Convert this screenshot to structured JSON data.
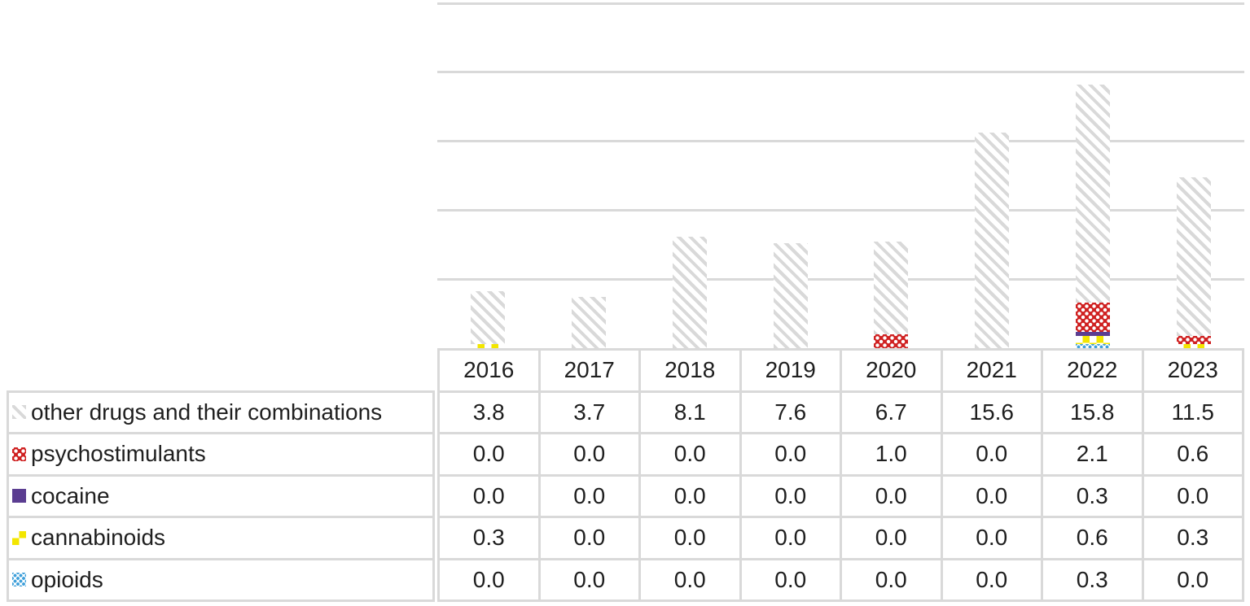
{
  "chart_data": {
    "type": "bar",
    "stacked": true,
    "title": "",
    "categories": [
      "2016",
      "2017",
      "2018",
      "2019",
      "2020",
      "2021",
      "2022",
      "2023"
    ],
    "series": [
      {
        "name": "other drugs and their combinations",
        "pattern": "diagonal-stripe",
        "color": "#d9d9d9",
        "values": [
          3.8,
          3.7,
          8.1,
          7.6,
          6.7,
          15.6,
          15.8,
          11.5
        ]
      },
      {
        "name": "psychostimulants",
        "pattern": "red-checker",
        "color": "#cf2020",
        "values": [
          0.0,
          0.0,
          0.0,
          0.0,
          1.0,
          0.0,
          2.1,
          0.6
        ]
      },
      {
        "name": "cocaine",
        "pattern": "solid-purple",
        "color": "#5b3d91",
        "values": [
          0.0,
          0.0,
          0.0,
          0.0,
          0.0,
          0.0,
          0.3,
          0.0
        ]
      },
      {
        "name": "cannabinoids",
        "pattern": "yellow-checker",
        "color": "#f3e600",
        "values": [
          0.3,
          0.0,
          0.0,
          0.0,
          0.0,
          0.0,
          0.6,
          0.3
        ]
      },
      {
        "name": "opioids",
        "pattern": "blue-dots",
        "color": "#3fa0da",
        "values": [
          0.0,
          0.0,
          0.0,
          0.0,
          0.0,
          0.0,
          0.3,
          0.0
        ]
      }
    ],
    "stack_order_bottom_to_top": [
      "opioids",
      "cannabinoids",
      "cocaine",
      "psychostimulants",
      "other drugs and their combinations"
    ],
    "ylim": [
      0,
      25
    ],
    "gridline_step": 5,
    "grid": true,
    "y_axis_labels_visible": false,
    "legend_position": "data-table-left",
    "value_format": "one-decimal"
  },
  "data_table": {
    "header_years": [
      "2016",
      "2017",
      "2018",
      "2019",
      "2020",
      "2021",
      "2022",
      "2023"
    ],
    "rows": [
      {
        "label": "other drugs and their combinations",
        "swatch_icon": "diagonal-stripe-swatch-icon",
        "values": [
          "3.8",
          "3.7",
          "8.1",
          "7.6",
          "6.7",
          "15.6",
          "15.8",
          "11.5"
        ]
      },
      {
        "label": "psychostimulants",
        "swatch_icon": "red-checker-swatch-icon",
        "values": [
          "0.0",
          "0.0",
          "0.0",
          "0.0",
          "1.0",
          "0.0",
          "2.1",
          "0.6"
        ]
      },
      {
        "label": "cocaine",
        "swatch_icon": "purple-solid-swatch-icon",
        "values": [
          "0.0",
          "0.0",
          "0.0",
          "0.0",
          "0.0",
          "0.0",
          "0.3",
          "0.0"
        ]
      },
      {
        "label": "cannabinoids",
        "swatch_icon": "yellow-checker-swatch-icon",
        "values": [
          "0.3",
          "0.0",
          "0.0",
          "0.0",
          "0.0",
          "0.0",
          "0.6",
          "0.3"
        ]
      },
      {
        "label": "opioids",
        "swatch_icon": "blue-dots-swatch-icon",
        "values": [
          "0.0",
          "0.0",
          "0.0",
          "0.0",
          "0.0",
          "0.0",
          "0.3",
          "0.0"
        ]
      }
    ]
  },
  "colors": {
    "background": "#ffffff",
    "gridline": "#d9d9d9",
    "table_border": "#d9d9d9",
    "text": "#1f1f1f",
    "other_drugs_stripe_gray": "#d9d9d9",
    "psychostimulants_red": "#cf2020",
    "cocaine_purple": "#5b3d91",
    "cannabinoids_yellow": "#f3e600",
    "opioids_blue": "#3fa0da"
  }
}
